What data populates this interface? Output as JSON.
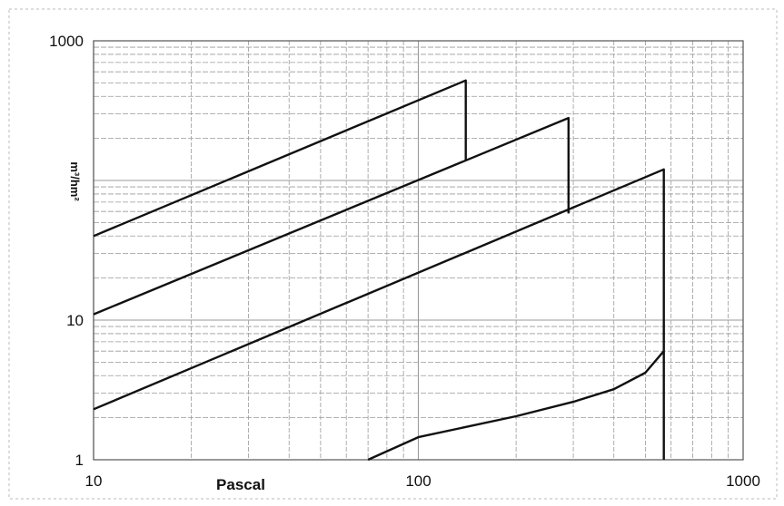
{
  "chart_data": {
    "type": "line",
    "title": "",
    "xlabel": "Pascal",
    "ylabel": "m³/hm²",
    "x_scale": "log",
    "y_scale": "log",
    "xlim": [
      10,
      1000
    ],
    "ylim": [
      1,
      1000
    ],
    "x_ticks": [
      "10",
      "100",
      "1000"
    ],
    "y_ticks": [
      "1000",
      "10",
      "1"
    ],
    "grid": true,
    "colors": {
      "line": "#111111",
      "grid": "#9a9a9a",
      "frame": "#555555"
    },
    "series": [
      {
        "points": [
          [
            10,
            40
          ],
          [
            140,
            520
          ],
          [
            140,
            140
          ]
        ]
      },
      {
        "points": [
          [
            10,
            11
          ],
          [
            290,
            280
          ],
          [
            290,
            58
          ]
        ]
      },
      {
        "points": [
          [
            10,
            2.3
          ],
          [
            570,
            120
          ],
          [
            570,
            1
          ]
        ]
      },
      {
        "points": [
          [
            70,
            1
          ],
          [
            100,
            1.45
          ],
          [
            200,
            2.05
          ],
          [
            300,
            2.6
          ],
          [
            400,
            3.2
          ],
          [
            500,
            4.2
          ],
          [
            570,
            6
          ]
        ]
      }
    ]
  }
}
